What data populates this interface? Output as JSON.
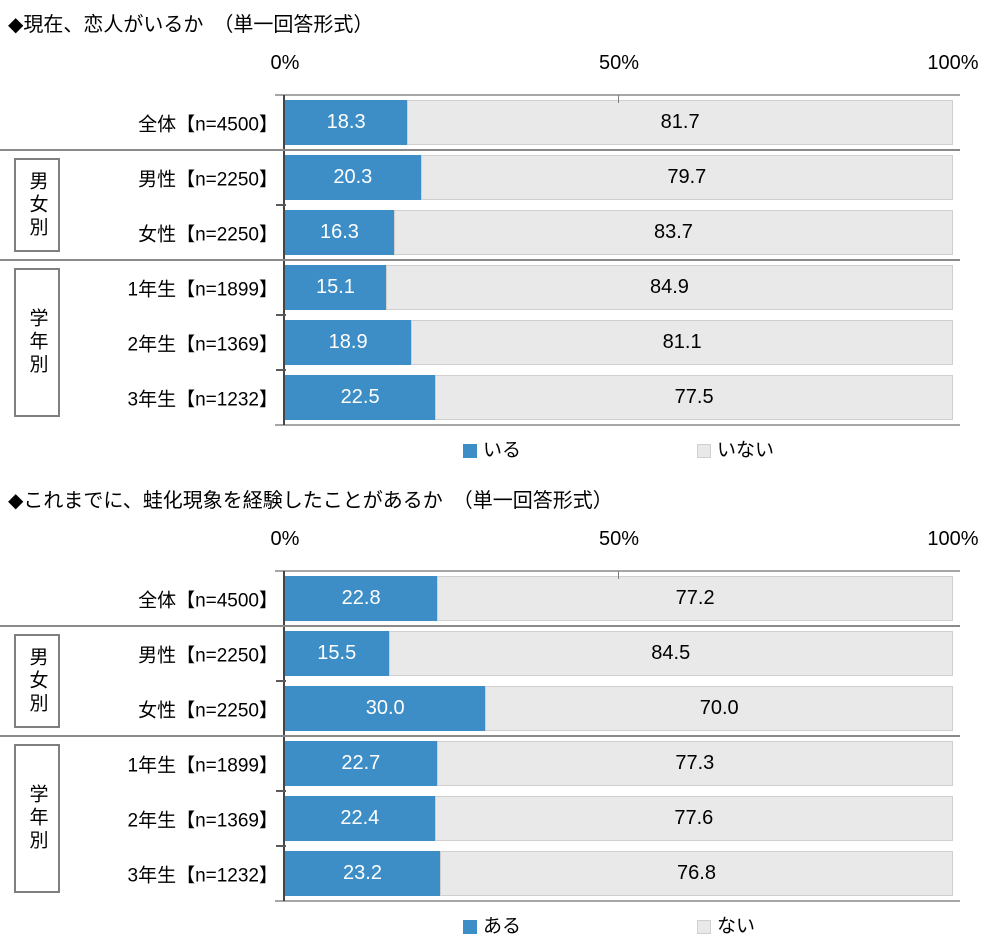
{
  "colors": {
    "bar_primary": "#3d8ec6",
    "bar_secondary": "#e9e9e9",
    "secondary_border": "#cfcfcf",
    "axis_line": "#454545",
    "separator": "#8a8a8a",
    "plot_border": "#a6a6a6"
  },
  "chart_data": [
    {
      "type": "bar",
      "orientation": "horizontal",
      "stacked": true,
      "title": "◆現在、恋人がいるか　（単一回答形式）",
      "x_axis": {
        "ticks": [
          "0%",
          "50%",
          "100%"
        ],
        "range": [
          0,
          100
        ],
        "grid": false
      },
      "categories": [
        "全体【n=4500】",
        "男性【n=2250】",
        "女性【n=2250】",
        "1年生【n=1899】",
        "2年生【n=1369】",
        "3年生【n=1232】"
      ],
      "groups": [
        {
          "label": "",
          "span": 1
        },
        {
          "label": "男女別",
          "span": 2
        },
        {
          "label": "学年別",
          "span": 3
        }
      ],
      "series": [
        {
          "name": "いる",
          "color": "#3d8ec6",
          "text_color": "#ffffff",
          "values": [
            18.3,
            20.3,
            16.3,
            15.1,
            18.9,
            22.5
          ]
        },
        {
          "name": "いない",
          "color": "#e9e9e9",
          "text_color": "#000000",
          "values": [
            81.7,
            79.7,
            83.7,
            84.9,
            81.1,
            77.5
          ]
        }
      ],
      "legend_position": "bottom"
    },
    {
      "type": "bar",
      "orientation": "horizontal",
      "stacked": true,
      "title": "◆これまでに、蛙化現象を経験したことがあるか　（単一回答形式）",
      "x_axis": {
        "ticks": [
          "0%",
          "50%",
          "100%"
        ],
        "range": [
          0,
          100
        ],
        "grid": false
      },
      "categories": [
        "全体【n=4500】",
        "男性【n=2250】",
        "女性【n=2250】",
        "1年生【n=1899】",
        "2年生【n=1369】",
        "3年生【n=1232】"
      ],
      "groups": [
        {
          "label": "",
          "span": 1
        },
        {
          "label": "男女別",
          "span": 2
        },
        {
          "label": "学年別",
          "span": 3
        }
      ],
      "series": [
        {
          "name": "ある",
          "color": "#3d8ec6",
          "text_color": "#ffffff",
          "values": [
            22.8,
            15.5,
            30.0,
            22.7,
            22.4,
            23.2
          ]
        },
        {
          "name": "ない",
          "color": "#e9e9e9",
          "text_color": "#000000",
          "values": [
            77.2,
            84.5,
            70.0,
            77.3,
            77.6,
            76.8
          ]
        }
      ],
      "legend_position": "bottom"
    }
  ]
}
